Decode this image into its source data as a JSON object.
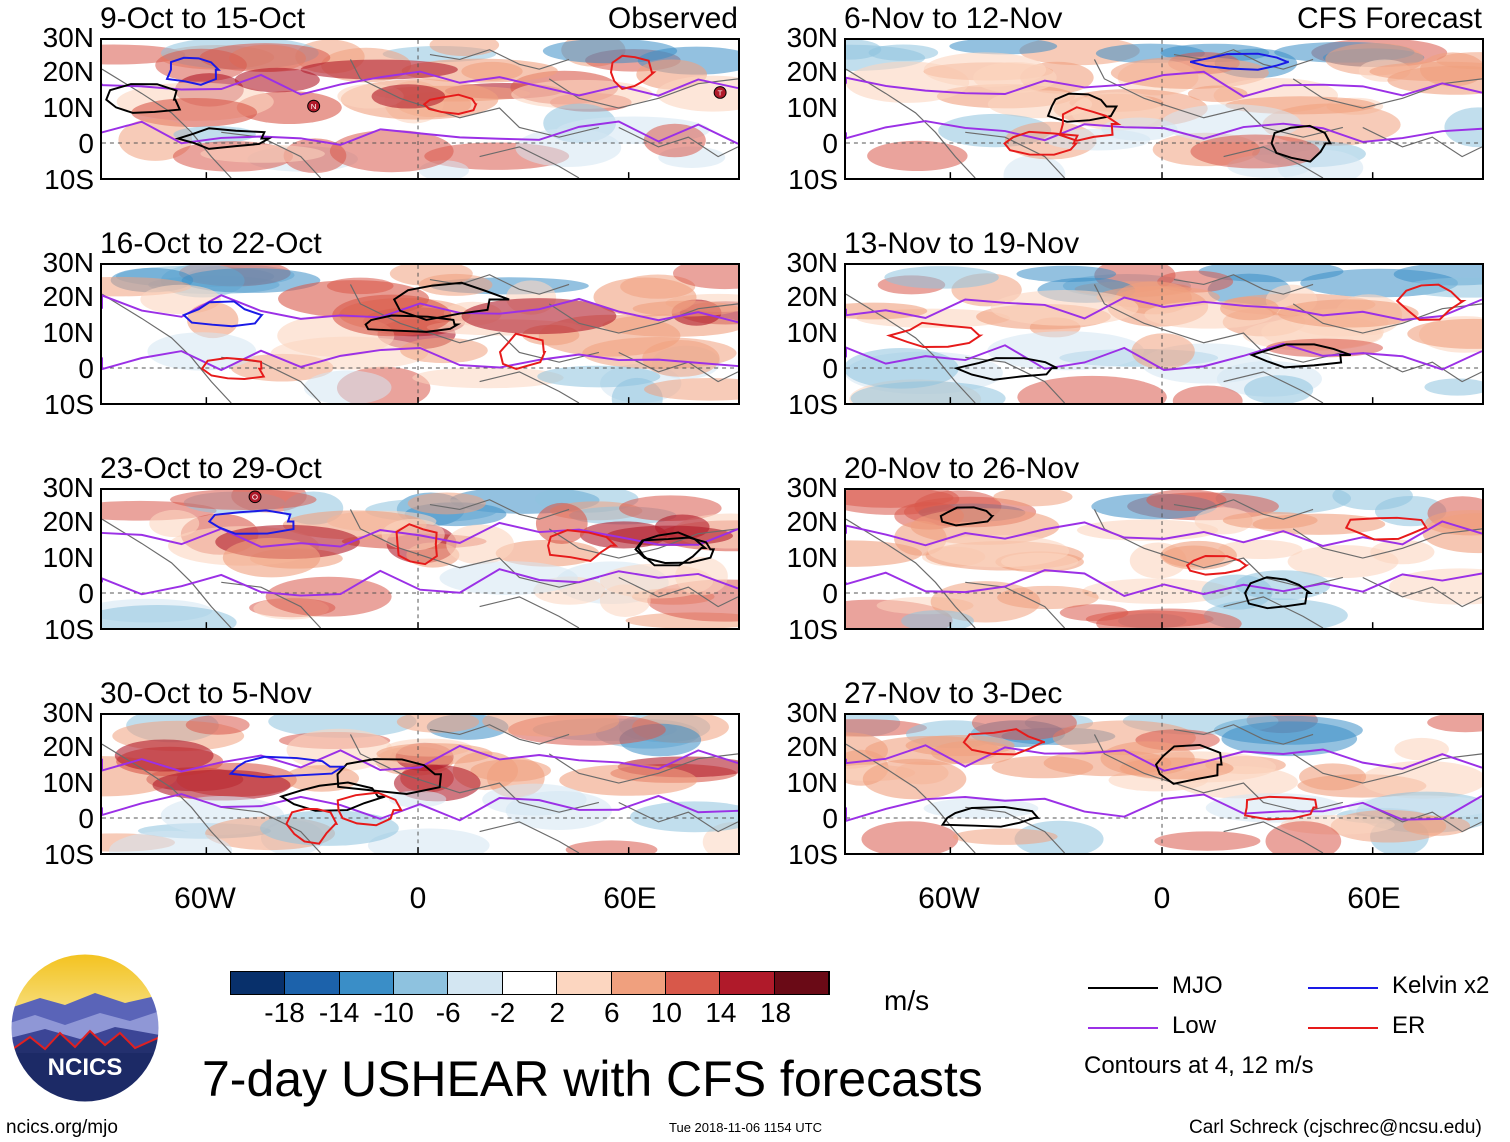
{
  "observed_label": "Observed",
  "forecast_label": "CFS Forecast",
  "lat_labels": [
    "30N",
    "20N",
    "10N",
    "0",
    "10S"
  ],
  "lon_labels": [
    "60W",
    "0",
    "60E"
  ],
  "observed_panels": [
    {
      "title": "9-Oct to 15-Oct"
    },
    {
      "title": "16-Oct to 22-Oct"
    },
    {
      "title": "23-Oct to 29-Oct"
    },
    {
      "title": "30-Oct to 5-Nov"
    }
  ],
  "forecast_panels": [
    {
      "title": "6-Nov to 12-Nov"
    },
    {
      "title": "13-Nov to 19-Nov"
    },
    {
      "title": "20-Nov to 26-Nov"
    },
    {
      "title": "27-Nov to 3-Dec"
    }
  ],
  "storm_markers": [
    "N",
    "T",
    "O"
  ],
  "colorbar": {
    "ticks": [
      "-18",
      "-14",
      "-10",
      "-6",
      "-2",
      "2",
      "6",
      "10",
      "14",
      "18"
    ],
    "colors": [
      "#08306b",
      "#1c62ab",
      "#3a8ec7",
      "#8ec2df",
      "#d3e6f2",
      "#ffffff",
      "#fcd6c0",
      "#f0a07e",
      "#d8584a",
      "#b01a2a",
      "#6a0a16"
    ],
    "units": "m/s"
  },
  "legend": {
    "items": [
      {
        "label": "MJO",
        "color": "#000000"
      },
      {
        "label": "Kelvin x2",
        "color": "#1a1ae6"
      },
      {
        "label": "Low",
        "color": "#9b30e6"
      },
      {
        "label": "ER",
        "color": "#e61a1a"
      }
    ],
    "note": "Contours at 4, 12 m/s"
  },
  "logo_text": "NCICS",
  "main_title": "7-day USHEAR with CFS forecasts",
  "url": "ncics.org/mjo",
  "timestamp": "Tue 2018-11-06 1154 UTC",
  "credit": "Carl Schreck (cjschrec@ncsu.edu)"
}
